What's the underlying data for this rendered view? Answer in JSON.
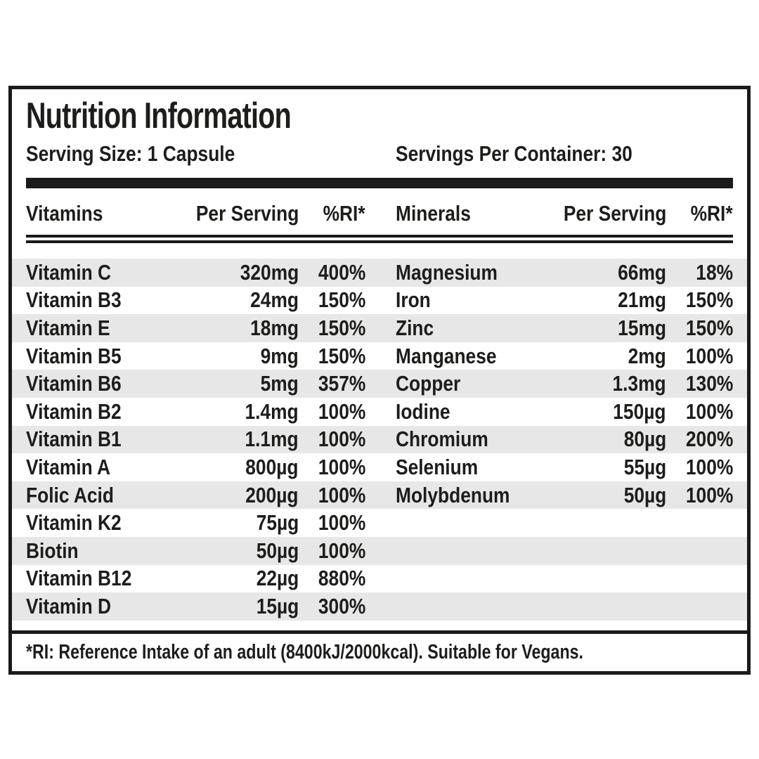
{
  "label": {
    "title": "Nutrition Information",
    "serving_size": "Serving Size: 1 Capsule",
    "servings_per_container": "Servings Per Container: 30",
    "footnote": "*RI: Reference Intake of an adult (8400kJ/2000kcal). Suitable for Vegans."
  },
  "columns": {
    "vitamins_header": "Vitamins",
    "minerals_header": "Minerals",
    "per_serving": "Per Serving",
    "ri": "%RI*"
  },
  "vitamins": [
    {
      "name": "Vitamin C",
      "amount": "320mg",
      "ri": "400%"
    },
    {
      "name": "Vitamin B3",
      "amount": "24mg",
      "ri": "150%"
    },
    {
      "name": "Vitamin E",
      "amount": "18mg",
      "ri": "150%"
    },
    {
      "name": "Vitamin B5",
      "amount": "9mg",
      "ri": "150%"
    },
    {
      "name": "Vitamin B6",
      "amount": "5mg",
      "ri": "357%"
    },
    {
      "name": "Vitamin B2",
      "amount": "1.4mg",
      "ri": "100%"
    },
    {
      "name": "Vitamin B1",
      "amount": "1.1mg",
      "ri": "100%"
    },
    {
      "name": "Vitamin A",
      "amount": "800µg",
      "ri": "100%"
    },
    {
      "name": "Folic Acid",
      "amount": "200µg",
      "ri": "100%"
    },
    {
      "name": "Vitamin K2",
      "amount": "75µg",
      "ri": "100%"
    },
    {
      "name": "Biotin",
      "amount": "50µg",
      "ri": "100%"
    },
    {
      "name": "Vitamin B12",
      "amount": "22µg",
      "ri": "880%"
    },
    {
      "name": "Vitamin D",
      "amount": "15µg",
      "ri": "300%"
    }
  ],
  "minerals": [
    {
      "name": "Magnesium",
      "amount": "66mg",
      "ri": "18%"
    },
    {
      "name": "Iron",
      "amount": "21mg",
      "ri": "150%"
    },
    {
      "name": "Zinc",
      "amount": "15mg",
      "ri": "150%"
    },
    {
      "name": "Manganese",
      "amount": "2mg",
      "ri": "100%"
    },
    {
      "name": "Copper",
      "amount": "1.3mg",
      "ri": "130%"
    },
    {
      "name": "Iodine",
      "amount": "150µg",
      "ri": "100%"
    },
    {
      "name": "Chromium",
      "amount": "80µg",
      "ri": "200%"
    },
    {
      "name": "Selenium",
      "amount": "55µg",
      "ri": "100%"
    },
    {
      "name": "Molybdenum",
      "amount": "50µg",
      "ri": "100%"
    }
  ],
  "colors": {
    "ink": "#1d1d1b",
    "border": "#1a1a1a",
    "stripe": "#e7e7e7",
    "background": "#ffffff"
  }
}
